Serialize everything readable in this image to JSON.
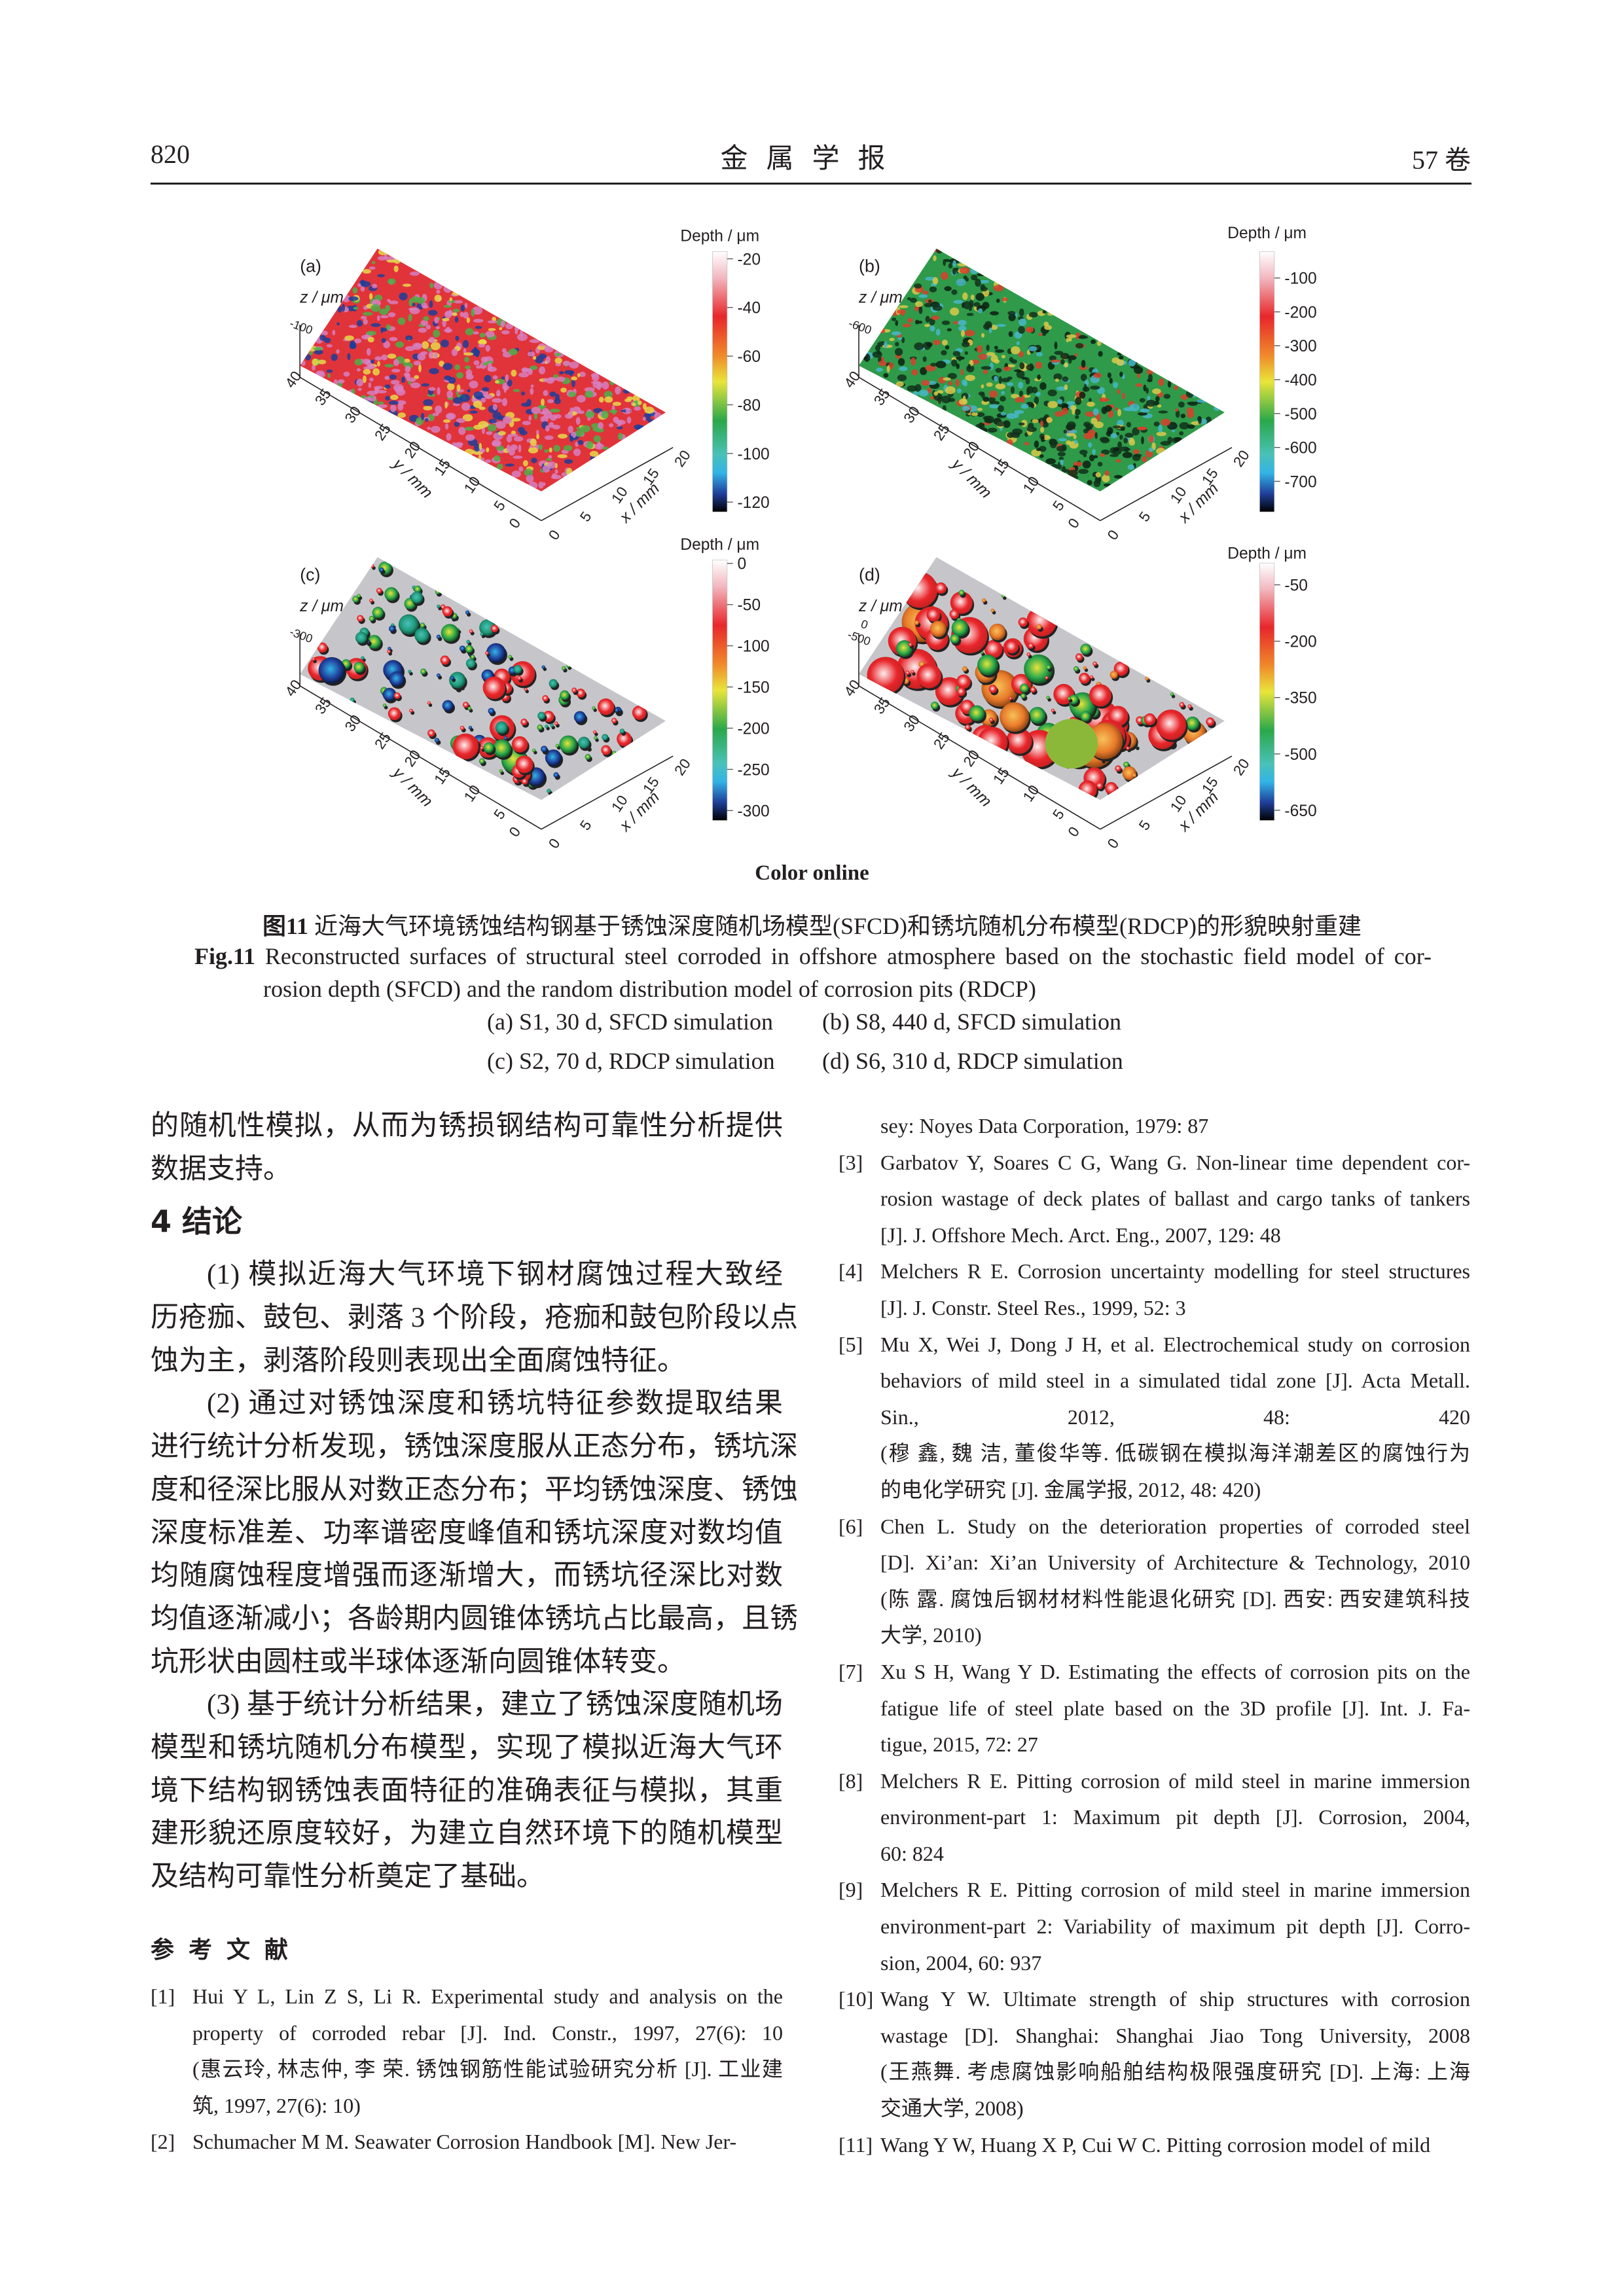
{
  "header": {
    "page_number": "820",
    "journal": "金属学报",
    "volume": "57 卷"
  },
  "figure": {
    "colorbar_colors": [
      "#ffffff",
      "#f2b8c0",
      "#e8262b",
      "#f08a2a",
      "#e9e53a",
      "#2aa84a",
      "#4ac1b8",
      "#32b4e6",
      "#1f3f9b",
      "#000000"
    ],
    "panels": [
      {
        "label": "(a)",
        "z_label": "z / μm",
        "z_ticks": [
          "-100"
        ],
        "y_label": "y / mm",
        "x_label": "x / mm",
        "y_ticks": [
          "40",
          "35",
          "30",
          "25",
          "20",
          "15",
          "10",
          "5",
          "0"
        ],
        "x_ticks": [
          "0",
          "5",
          "10",
          "15",
          "20"
        ],
        "colorbar_title": "Depth / μm",
        "colorbar_range": [
          -17,
          -124
        ],
        "colorbar_ticks": [
          "-20",
          "-40",
          "-60",
          "-80",
          "-100",
          "-120"
        ],
        "surface": "random-field-red"
      },
      {
        "label": "(b)",
        "z_label": "z / μm",
        "z_ticks": [
          "-600"
        ],
        "y_label": "y / mm",
        "x_label": "x / mm",
        "y_ticks": [
          "40",
          "35",
          "30",
          "25",
          "20",
          "15",
          "10",
          "5",
          "0"
        ],
        "x_ticks": [
          "0",
          "5",
          "10",
          "15",
          "20"
        ],
        "colorbar_title": "Depth / μm",
        "colorbar_range": [
          -22,
          -790
        ],
        "colorbar_ticks": [
          "-100",
          "-200",
          "-300",
          "-400",
          "-500",
          "-600",
          "-700"
        ],
        "surface": "random-field-green"
      },
      {
        "label": "(c)",
        "z_label": "z / μm",
        "z_ticks": [
          "-300"
        ],
        "y_label": "y / mm",
        "x_label": "x / mm",
        "y_ticks": [
          "40",
          "35",
          "30",
          "25",
          "20",
          "15",
          "10",
          "5",
          "0"
        ],
        "x_ticks": [
          "0",
          "5",
          "10",
          "15",
          "20"
        ],
        "colorbar_title": "Depth / μm",
        "colorbar_range": [
          4,
          -312
        ],
        "colorbar_ticks": [
          "0",
          "-50",
          "-100",
          "-150",
          "-200",
          "-250",
          "-300"
        ],
        "surface": "pits-small"
      },
      {
        "label": "(d)",
        "z_label": "z / μm",
        "z_ticks": [
          "0",
          "-500"
        ],
        "y_label": "y / mm",
        "x_label": "x / mm",
        "y_ticks": [
          "40",
          "35",
          "30",
          "25",
          "20",
          "15",
          "10",
          "5",
          "0"
        ],
        "x_ticks": [
          "0",
          "5",
          "10",
          "15",
          "20"
        ],
        "colorbar_title": "Depth / μm",
        "colorbar_range": [
          8,
          -677
        ],
        "colorbar_ticks": [
          "-50",
          "-200",
          "-350",
          "-500",
          "-650"
        ],
        "surface": "pits-large"
      }
    ],
    "color_online": "Color online",
    "caption_cn_prefix": "图11",
    "caption_cn": " 近海大气环境锈蚀结构钢基于锈蚀深度随机场模型(SFCD)和锈坑随机分布模型(RDCP)的形貌映射重建",
    "caption_en_prefix": "Fig.11",
    "caption_en_line1": " Reconstructed surfaces of structural steel corroded in offshore atmosphere based on the stochastic field model of cor-",
    "caption_en_line2": "rosion depth (SFCD) and the random distribution model of corrosion pits (RDCP)",
    "subcaptions": [
      "(a) S1, 30 d, SFCD simulation",
      "(b) S8, 440 d, SFCD simulation",
      "(c) S2, 70 d, RDCP simulation",
      "(d) S6, 310 d, RDCP simulation"
    ]
  },
  "body": {
    "intro_lines": [
      "的随机性模拟，从而为锈损钢结构可靠性分析提供",
      "数据支持。"
    ],
    "section_heading": "4  结论",
    "paragraphs": [
      [
        "(1) 模拟近海大气环境下钢材腐蚀过程大致经",
        "历疮痂、鼓包、剥落 3 个阶段，疮痂和鼓包阶段以点",
        "蚀为主，剥落阶段则表现出全面腐蚀特征。"
      ],
      [
        "(2) 通过对锈蚀深度和锈坑特征参数提取结果",
        "进行统计分析发现，锈蚀深度服从正态分布，锈坑深",
        "度和径深比服从对数正态分布；平均锈蚀深度、锈蚀",
        "深度标准差、功率谱密度峰值和锈坑深度对数均值",
        "均随腐蚀程度增强而逐渐增大，而锈坑径深比对数",
        "均值逐渐减小；各龄期内圆锥体锈坑占比最高，且锈",
        "坑形状由圆柱或半球体逐渐向圆锥体转变。"
      ],
      [
        "(3) 基于统计分析结果，建立了锈蚀深度随机场",
        "模型和锈坑随机分布模型，实现了模拟近海大气环",
        "境下结构钢锈蚀表面特征的准确表征与模拟，其重",
        "建形貌还原度较好，为建立自然环境下的随机模型",
        "及结构可靠性分析奠定了基础。"
      ]
    ]
  },
  "references": {
    "heading": "参考文献",
    "left": [
      {
        "num": "[1]",
        "lines": [
          "Hui Y L, Lin Z S, Li R. Experimental study and analysis on the",
          "property of corroded rebar [J]. Ind. Constr., 1997, 27(6): 10",
          "(惠云玲, 林志仲, 李 荣. 锈蚀钢筋性能试验研究分析 [J]. 工业建",
          "筑, 1997, 27(6): 10)"
        ]
      },
      {
        "num": "[2]",
        "lines": [
          "Schumacher M M. Seawater Corrosion Handbook [M]. New Jer-"
        ]
      }
    ],
    "right": [
      {
        "num": "",
        "lines": [
          "sey: Noyes Data Corporation, 1979: 87"
        ]
      },
      {
        "num": "[3]",
        "lines": [
          "Garbatov Y, Soares C G, Wang G. Non-linear time dependent cor-",
          "rosion wastage of deck plates of ballast and cargo tanks of tankers",
          "[J]. J. Offshore Mech. Arct. Eng., 2007, 129: 48"
        ]
      },
      {
        "num": "[4]",
        "lines": [
          "Melchers R E. Corrosion uncertainty modelling for steel structures",
          "[J]. J. Constr. Steel Res., 1999, 52: 3"
        ]
      },
      {
        "num": "[5]",
        "lines": [
          "Mu X, Wei J, Dong J H, et al. Electrochemical study on corrosion",
          "behaviors of mild steel in a simulated tidal zone [J]. Acta Metall.",
          "Sin., 2012, 48: 420",
          "(穆 鑫, 魏 洁, 董俊华等. 低碳钢在模拟海洋潮差区的腐蚀行为",
          "的电化学研究 [J]. 金属学报, 2012, 48: 420)"
        ]
      },
      {
        "num": "[6]",
        "lines": [
          "Chen L. Study on the deterioration properties of corroded steel",
          "[D]. Xi’an: Xi’an University of Architecture & Technology, 2010",
          "(陈 露. 腐蚀后钢材材料性能退化研究 [D]. 西安: 西安建筑科技",
          "大学, 2010)"
        ]
      },
      {
        "num": "[7]",
        "lines": [
          "Xu S H, Wang Y D. Estimating the effects of corrosion pits on the",
          "fatigue life of steel plate based on the 3D profile [J]. Int. J. Fa-",
          "tigue, 2015, 72: 27"
        ]
      },
      {
        "num": "[8]",
        "lines": [
          "Melchers R E. Pitting corrosion of mild steel in marine immersion",
          "environment-part 1: Maximum pit depth [J]. Corrosion, 2004,",
          "60: 824"
        ]
      },
      {
        "num": "[9]",
        "lines": [
          "Melchers R E. Pitting corrosion of mild steel in marine immersion",
          "environment-part 2: Variability of maximum pit depth [J]. Corro-",
          "sion, 2004, 60: 937"
        ]
      },
      {
        "num": "[10]",
        "lines": [
          "Wang Y W. Ultimate strength of ship structures with corrosion",
          "wastage [D]. Shanghai: Shanghai Jiao Tong University, 2008",
          "(王燕舞. 考虑腐蚀影响船舶结构极限强度研究 [D]. 上海: 上海",
          "交通大学, 2008)"
        ]
      },
      {
        "num": "[11]",
        "lines": [
          "Wang Y W, Huang X P, Cui W C. Pitting corrosion model of mild"
        ]
      }
    ]
  }
}
